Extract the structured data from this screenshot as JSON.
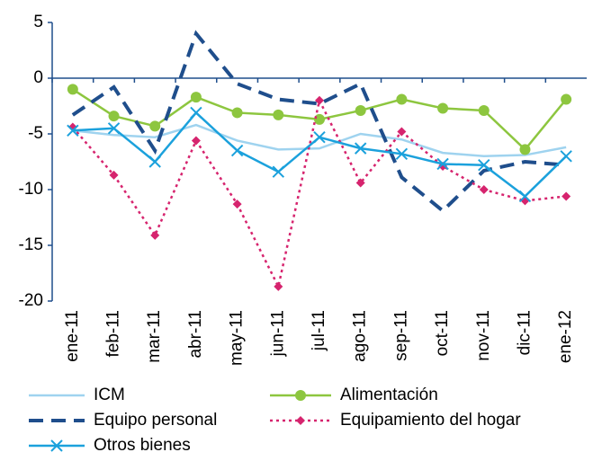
{
  "chart_data": {
    "type": "line",
    "categories": [
      "ene-11",
      "feb-11",
      "mar-11",
      "abr-11",
      "may-11",
      "jun-11",
      "jul-11",
      "ago-11",
      "sep-11",
      "oct-11",
      "nov-11",
      "dic-11",
      "ene-12"
    ],
    "series": [
      {
        "name": "ICM",
        "color": "#9fd3ef",
        "line_style": "solid",
        "marker": "none",
        "values": [
          -4.7,
          -5.1,
          -5.3,
          -4.2,
          -5.6,
          -6.4,
          -6.3,
          -5.0,
          -5.5,
          -6.7,
          -7.0,
          -6.9,
          -6.2
        ]
      },
      {
        "name": "Alimentación",
        "color": "#8dc63f",
        "line_style": "solid",
        "marker": "circle",
        "values": [
          -1.0,
          -3.4,
          -4.3,
          -1.7,
          -3.1,
          -3.3,
          -3.7,
          -2.9,
          -1.9,
          -2.7,
          -2.9,
          -6.4,
          -1.9
        ]
      },
      {
        "name": "Equipo personal",
        "color": "#1f4e8c",
        "line_style": "dash",
        "marker": "none",
        "values": [
          -3.3,
          -0.8,
          -6.5,
          4.0,
          -0.5,
          -1.9,
          -2.3,
          -0.5,
          -8.9,
          -11.9,
          -8.3,
          -7.5,
          -7.8
        ]
      },
      {
        "name": "Equipamiento del hogar",
        "color": "#d6246e",
        "line_style": "dot",
        "marker": "diamond",
        "values": [
          -4.4,
          -8.7,
          -14.1,
          -5.6,
          -11.3,
          -18.7,
          -2.0,
          -9.4,
          -4.8,
          -7.9,
          -10.0,
          -11.0,
          -10.6
        ]
      },
      {
        "name": "Otros bienes",
        "color": "#1ba1dc",
        "line_style": "solid",
        "marker": "x",
        "values": [
          -4.7,
          -4.5,
          -7.5,
          -3.1,
          -6.5,
          -8.4,
          -5.3,
          -6.3,
          -6.8,
          -7.7,
          -7.8,
          -10.6,
          -7.0
        ]
      }
    ],
    "ylim": [
      -20,
      5
    ],
    "yticks": [
      -20,
      -15,
      -10,
      -5,
      0,
      5
    ],
    "grid": false
  }
}
